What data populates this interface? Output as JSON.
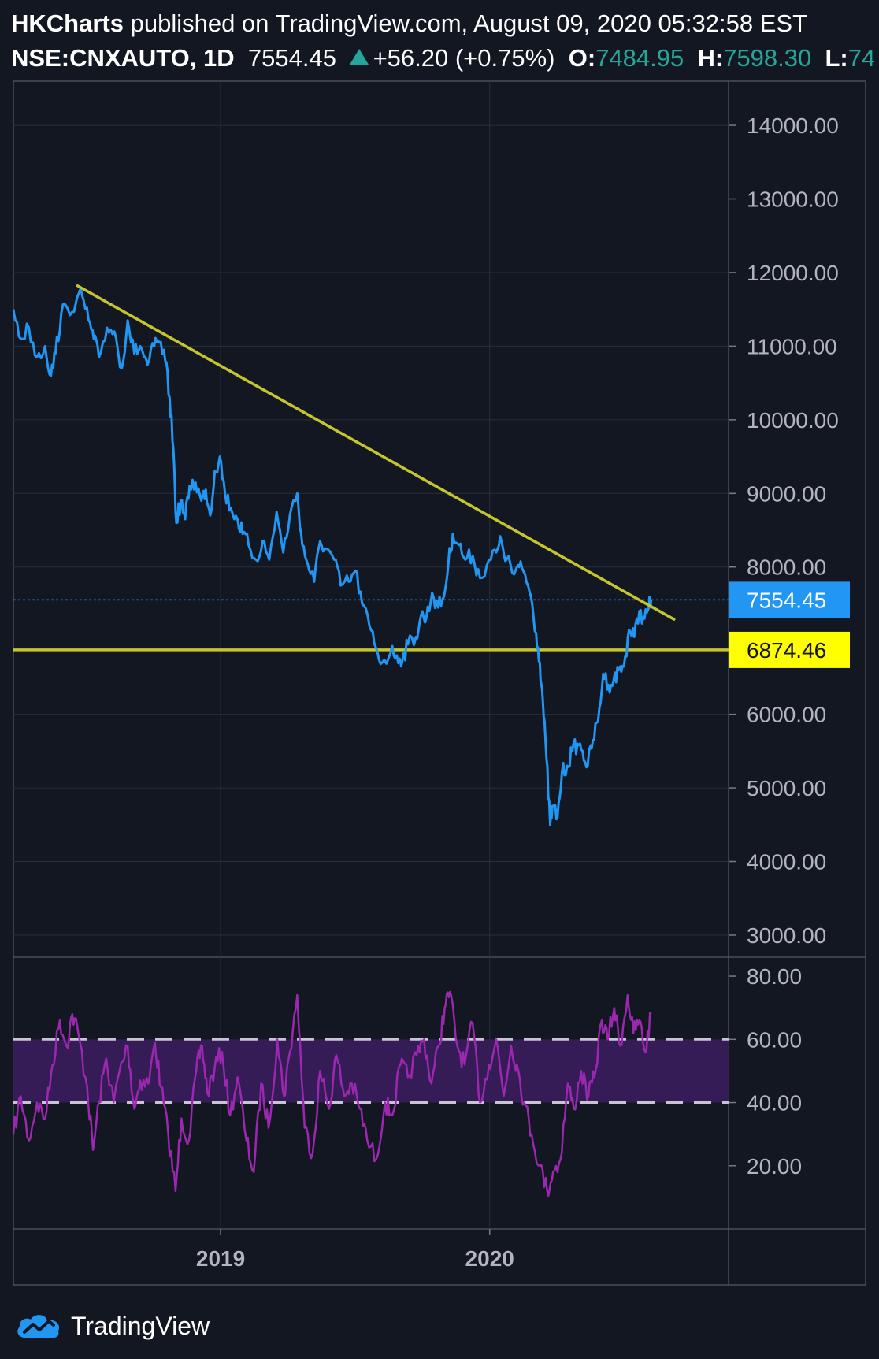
{
  "header": {
    "author": "HKCharts",
    "published": "published on TradingView.com, August 09, 2020 05:32:58 EST",
    "symbol": "NSE:CNXAUTO, 1D",
    "last": "7554.45",
    "change": "+56.20 (+0.75%)",
    "o_label": "O:",
    "o_value": "7484.95",
    "h_label": "H:",
    "h_value": "7598.30",
    "l_label": "L:",
    "l_value": "74"
  },
  "footer": {
    "brand": "TradingView",
    "logo_icon": "tradingview-logo-icon"
  },
  "colors": {
    "background": "#131722",
    "grid": "#2a2e39",
    "price": "#2196f3",
    "trendline": "#c6c52c",
    "support_label": "#ffff00",
    "rsi": "#9c27b0",
    "rsi_band": "#3b1d5c",
    "up": "#26a69a"
  },
  "chart_data": [
    {
      "type": "line",
      "name": "price",
      "y_ticks": [
        "14000.00",
        "13000.00",
        "12000.00",
        "11000.00",
        "10000.00",
        "9000.00",
        "8000.00",
        "6000.00",
        "5000.00",
        "4000.00",
        "3000.00"
      ],
      "ylim": [
        2700,
        14600
      ],
      "x_ticks": [
        "2019",
        "2020"
      ],
      "x_range": [
        "2018-03-26",
        "2020-11-20"
      ],
      "series_points": [
        [
          "2018-03-26",
          11500
        ],
        [
          "2018-04-05",
          11100
        ],
        [
          "2018-04-16",
          11250
        ],
        [
          "2018-04-27",
          10850
        ],
        [
          "2018-05-08",
          11000
        ],
        [
          "2018-05-16",
          10600
        ],
        [
          "2018-05-22",
          10900
        ],
        [
          "2018-05-30",
          11450
        ],
        [
          "2018-06-08",
          11500
        ],
        [
          "2018-06-19",
          11600
        ],
        [
          "2018-06-27",
          11700
        ],
        [
          "2018-07-06",
          11350
        ],
        [
          "2018-07-13",
          11100
        ],
        [
          "2018-07-20",
          10850
        ],
        [
          "2018-07-31",
          11250
        ],
        [
          "2018-08-10",
          11200
        ],
        [
          "2018-08-20",
          10700
        ],
        [
          "2018-08-28",
          11350
        ],
        [
          "2018-09-06",
          10900
        ],
        [
          "2018-09-14",
          11000
        ],
        [
          "2018-09-24",
          10750
        ],
        [
          "2018-10-03",
          11000
        ],
        [
          "2018-10-10",
          11050
        ],
        [
          "2018-10-18",
          10800
        ],
        [
          "2018-10-24",
          10300
        ],
        [
          "2018-10-29",
          9600
        ],
        [
          "2018-11-02",
          8600
        ],
        [
          "2018-11-08",
          8900
        ],
        [
          "2018-11-14",
          8650
        ],
        [
          "2018-11-20",
          9100
        ],
        [
          "2018-11-28",
          9150
        ],
        [
          "2018-12-06",
          8900
        ],
        [
          "2018-12-12",
          9050
        ],
        [
          "2018-12-18",
          8700
        ],
        [
          "2018-12-24",
          9300
        ],
        [
          "2018-12-31",
          9500
        ],
        [
          "2019-01-07",
          9000
        ],
        [
          "2019-01-15",
          8800
        ],
        [
          "2019-01-24",
          8650
        ],
        [
          "2019-01-31",
          8450
        ],
        [
          "2019-02-08",
          8300
        ],
        [
          "2019-02-18",
          8100
        ],
        [
          "2019-02-27",
          8350
        ],
        [
          "2019-03-08",
          8100
        ],
        [
          "2019-03-18",
          8750
        ],
        [
          "2019-03-27",
          8200
        ],
        [
          "2019-04-05",
          8700
        ],
        [
          "2019-04-15",
          9000
        ],
        [
          "2019-04-22",
          8300
        ],
        [
          "2019-04-29",
          8050
        ],
        [
          "2019-05-08",
          7800
        ],
        [
          "2019-05-16",
          8350
        ],
        [
          "2019-05-24",
          8250
        ],
        [
          "2019-06-04",
          8100
        ],
        [
          "2019-06-13",
          7750
        ],
        [
          "2019-06-24",
          7800
        ],
        [
          "2019-07-03",
          7950
        ],
        [
          "2019-07-12",
          7500
        ],
        [
          "2019-07-22",
          7200
        ],
        [
          "2019-07-31",
          6900
        ],
        [
          "2019-08-08",
          6700
        ],
        [
          "2019-08-20",
          6850
        ],
        [
          "2019-08-28",
          6800
        ],
        [
          "2019-09-05",
          6750
        ],
        [
          "2019-09-12",
          6950
        ],
        [
          "2019-09-23",
          7050
        ],
        [
          "2019-09-30",
          7350
        ],
        [
          "2019-10-07",
          7300
        ],
        [
          "2019-10-15",
          7650
        ],
        [
          "2019-10-23",
          7450
        ],
        [
          "2019-10-31",
          7600
        ],
        [
          "2019-11-06",
          8050
        ],
        [
          "2019-11-12",
          8450
        ],
        [
          "2019-11-20",
          8300
        ],
        [
          "2019-11-29",
          8100
        ],
        [
          "2019-12-09",
          8150
        ],
        [
          "2019-12-19",
          7850
        ],
        [
          "2019-12-31",
          8100
        ],
        [
          "2020-01-10",
          8200
        ],
        [
          "2020-01-17",
          8350
        ],
        [
          "2020-01-24",
          8100
        ],
        [
          "2020-02-03",
          7900
        ],
        [
          "2020-02-10",
          8000
        ],
        [
          "2020-02-18",
          7900
        ],
        [
          "2020-02-26",
          7600
        ],
        [
          "2020-03-04",
          7100
        ],
        [
          "2020-03-09",
          6700
        ],
        [
          "2020-03-13",
          6200
        ],
        [
          "2020-03-18",
          5400
        ],
        [
          "2020-03-23",
          4500
        ],
        [
          "2020-03-27",
          4750
        ],
        [
          "2020-04-02",
          4600
        ],
        [
          "2020-04-08",
          5200
        ],
        [
          "2020-04-15",
          5300
        ],
        [
          "2020-04-22",
          5500
        ],
        [
          "2020-04-29",
          5600
        ],
        [
          "2020-05-06",
          5500
        ],
        [
          "2020-05-13",
          5300
        ],
        [
          "2020-05-20",
          5650
        ],
        [
          "2020-05-27",
          5900
        ],
        [
          "2020-06-03",
          6550
        ],
        [
          "2020-06-10",
          6400
        ],
        [
          "2020-06-17",
          6450
        ],
        [
          "2020-06-24",
          6600
        ],
        [
          "2020-07-01",
          6650
        ],
        [
          "2020-07-08",
          7150
        ],
        [
          "2020-07-15",
          7050
        ],
        [
          "2020-07-22",
          7400
        ],
        [
          "2020-07-29",
          7300
        ],
        [
          "2020-08-04",
          7450
        ],
        [
          "2020-08-07",
          7554.45
        ]
      ],
      "trendline": {
        "start": [
          "2018-06-21",
          11820
        ],
        "end": [
          "2020-09-07",
          7290
        ]
      },
      "horizontal_levels": [
        {
          "value": 6874.46,
          "label": "6874.46",
          "style": "solid"
        },
        {
          "value": 7554.45,
          "label": "7554.45",
          "style": "dotted"
        }
      ]
    },
    {
      "type": "line",
      "name": "RSI",
      "y_ticks": [
        "80.00",
        "60.00",
        "40.00",
        "20.00"
      ],
      "ylim": [
        0,
        86
      ],
      "band": [
        40,
        60
      ],
      "series_points": [
        [
          "2018-03-26",
          30
        ],
        [
          "2018-04-05",
          42
        ],
        [
          "2018-04-16",
          28
        ],
        [
          "2018-04-27",
          40
        ],
        [
          "2018-05-08",
          35
        ],
        [
          "2018-05-18",
          52
        ],
        [
          "2018-05-28",
          66
        ],
        [
          "2018-06-06",
          58
        ],
        [
          "2018-06-14",
          68
        ],
        [
          "2018-06-22",
          62
        ],
        [
          "2018-07-04",
          45
        ],
        [
          "2018-07-12",
          25
        ],
        [
          "2018-07-20",
          40
        ],
        [
          "2018-07-30",
          54
        ],
        [
          "2018-08-09",
          40
        ],
        [
          "2018-08-17",
          50
        ],
        [
          "2018-08-28",
          58
        ],
        [
          "2018-09-06",
          38
        ],
        [
          "2018-09-14",
          47
        ],
        [
          "2018-09-25",
          46
        ],
        [
          "2018-10-04",
          59
        ],
        [
          "2018-10-12",
          45
        ],
        [
          "2018-10-22",
          30
        ],
        [
          "2018-11-01",
          12
        ],
        [
          "2018-11-09",
          35
        ],
        [
          "2018-11-19",
          28
        ],
        [
          "2018-11-29",
          50
        ],
        [
          "2018-12-07",
          58
        ],
        [
          "2018-12-14",
          43
        ],
        [
          "2018-12-24",
          51
        ],
        [
          "2019-01-03",
          56
        ],
        [
          "2019-01-14",
          36
        ],
        [
          "2019-01-24",
          48
        ],
        [
          "2019-02-05",
          28
        ],
        [
          "2019-02-15",
          18
        ],
        [
          "2019-02-25",
          46
        ],
        [
          "2019-03-07",
          32
        ],
        [
          "2019-03-19",
          60
        ],
        [
          "2019-03-28",
          42
        ],
        [
          "2019-04-05",
          56
        ],
        [
          "2019-04-15",
          74
        ],
        [
          "2019-04-25",
          32
        ],
        [
          "2019-05-06",
          24
        ],
        [
          "2019-05-16",
          50
        ],
        [
          "2019-05-28",
          38
        ],
        [
          "2019-06-07",
          55
        ],
        [
          "2019-06-18",
          42
        ],
        [
          "2019-06-28",
          46
        ],
        [
          "2019-07-09",
          38
        ],
        [
          "2019-07-19",
          28
        ],
        [
          "2019-07-31",
          22
        ],
        [
          "2019-08-12",
          40
        ],
        [
          "2019-08-22",
          36
        ],
        [
          "2019-09-02",
          52
        ],
        [
          "2019-09-12",
          48
        ],
        [
          "2019-09-24",
          55
        ],
        [
          "2019-10-04",
          60
        ],
        [
          "2019-10-14",
          46
        ],
        [
          "2019-10-24",
          58
        ],
        [
          "2019-11-01",
          70
        ],
        [
          "2019-11-08",
          75
        ],
        [
          "2019-11-18",
          58
        ],
        [
          "2019-11-28",
          52
        ],
        [
          "2019-12-09",
          65
        ],
        [
          "2019-12-19",
          40
        ],
        [
          "2019-12-31",
          52
        ],
        [
          "2020-01-10",
          60
        ],
        [
          "2020-01-20",
          42
        ],
        [
          "2020-01-30",
          58
        ],
        [
          "2020-02-07",
          52
        ],
        [
          "2020-02-17",
          40
        ],
        [
          "2020-02-27",
          30
        ],
        [
          "2020-03-09",
          20
        ],
        [
          "2020-03-19",
          12
        ],
        [
          "2020-03-27",
          18
        ],
        [
          "2020-04-06",
          22
        ],
        [
          "2020-04-16",
          46
        ],
        [
          "2020-04-24",
          38
        ],
        [
          "2020-05-04",
          50
        ],
        [
          "2020-05-14",
          42
        ],
        [
          "2020-05-22",
          48
        ],
        [
          "2020-06-01",
          66
        ],
        [
          "2020-06-09",
          60
        ],
        [
          "2020-06-18",
          70
        ],
        [
          "2020-06-26",
          58
        ],
        [
          "2020-07-06",
          74
        ],
        [
          "2020-07-14",
          62
        ],
        [
          "2020-07-22",
          66
        ],
        [
          "2020-07-30",
          56
        ],
        [
          "2020-08-07",
          68
        ]
      ]
    }
  ]
}
